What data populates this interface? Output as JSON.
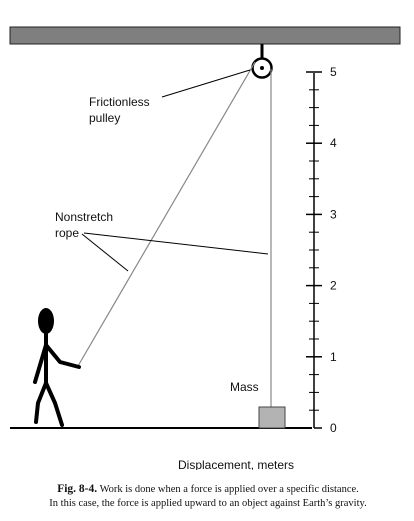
{
  "labels": {
    "pulley_line1": "Frictionless",
    "pulley_line2": "pulley",
    "rope_line1": "Nonstretch",
    "rope_line2": "rope",
    "mass": "Mass",
    "displacement": "Displacement, meters"
  },
  "scale": {
    "ticks": [
      "0",
      "1",
      "2",
      "3",
      "4",
      "5"
    ]
  },
  "caption": {
    "figure_number": "Fig. 8-4.",
    "line1": "Work is done when a force is applied over a specific distance.",
    "line2": "In this case, the force is applied upward to an object against Earth’s gravity."
  },
  "colors": {
    "ceiling": "#7f7f7f",
    "mass": "#b3b3b3",
    "rope": "#888888",
    "ink": "#000000"
  }
}
